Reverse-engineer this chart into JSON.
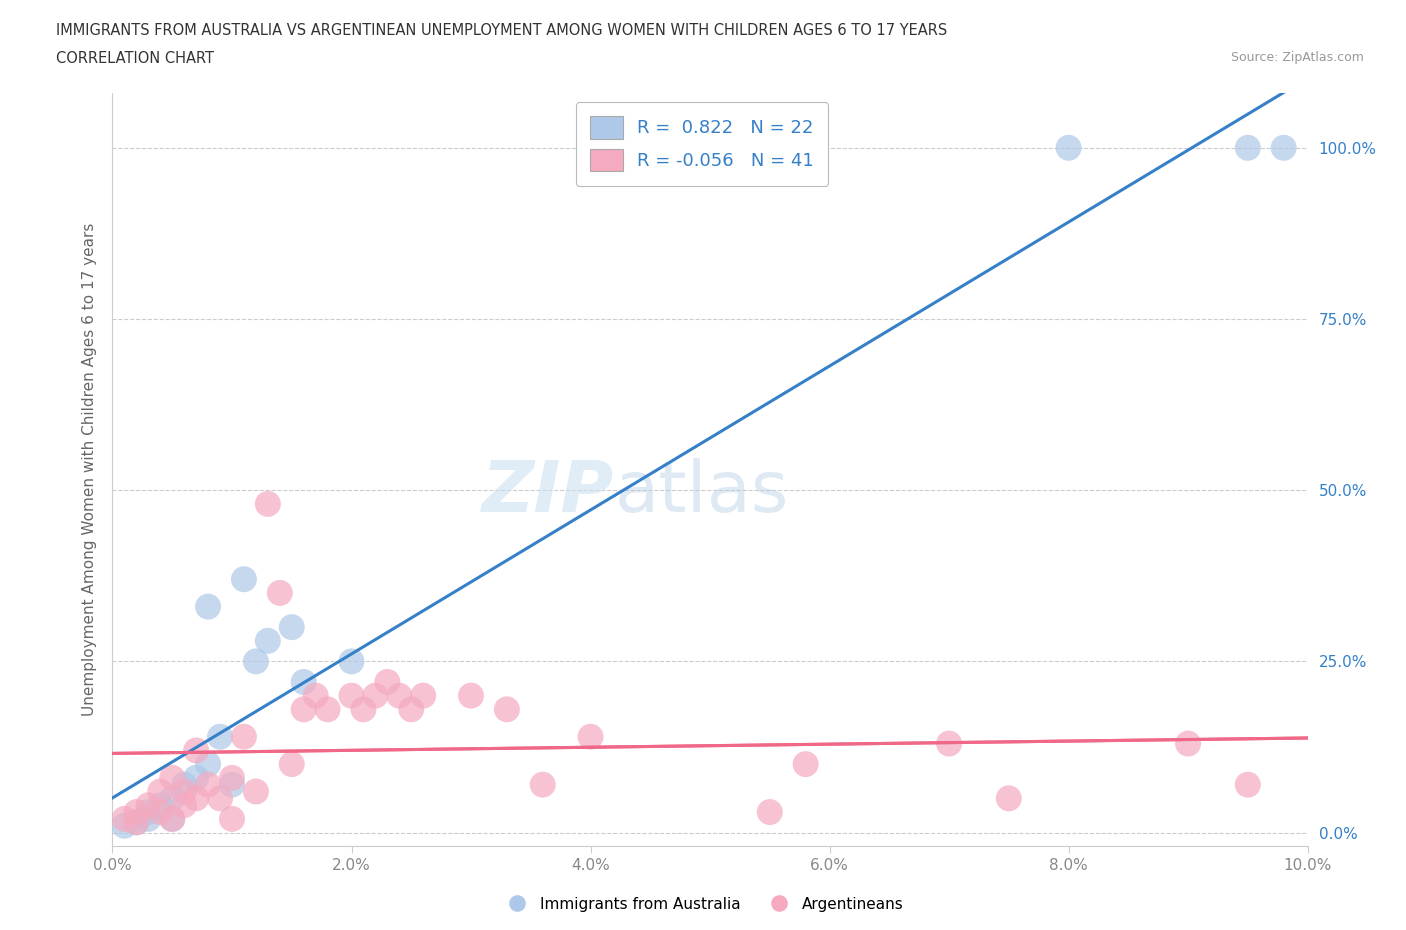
{
  "title_line1": "IMMIGRANTS FROM AUSTRALIA VS ARGENTINEAN UNEMPLOYMENT AMONG WOMEN WITH CHILDREN AGES 6 TO 17 YEARS",
  "title_line2": "CORRELATION CHART",
  "source": "Source: ZipAtlas.com",
  "ylabel": "Unemployment Among Women with Children Ages 6 to 17 years",
  "xlim": [
    0.0,
    10.0
  ],
  "ylim": [
    -2.0,
    108.0
  ],
  "xticklabels": [
    "0.0%",
    "2.0%",
    "4.0%",
    "6.0%",
    "8.0%",
    "10.0%"
  ],
  "xticks": [
    0.0,
    2.0,
    4.0,
    6.0,
    8.0,
    10.0
  ],
  "yticklabels_left": [],
  "yticks": [
    0.0,
    25.0,
    50.0,
    75.0,
    100.0
  ],
  "yticklabels_right": [
    "0.0%",
    "25.0%",
    "50.0%",
    "75.0%",
    "100.0%"
  ],
  "blue_R": 0.822,
  "blue_N": 22,
  "pink_R": -0.056,
  "pink_N": 41,
  "blue_color": "#adc8e8",
  "pink_color": "#f5aabf",
  "blue_line_color": "#3580c8",
  "pink_line_color": "#f06888",
  "watermark_zip": "ZIP",
  "watermark_atlas": "atlas",
  "background_color": "#ffffff",
  "blue_scatter_x": [
    0.1,
    0.2,
    0.3,
    0.3,
    0.4,
    0.5,
    0.5,
    0.6,
    0.7,
    0.8,
    0.8,
    0.9,
    1.0,
    1.1,
    1.2,
    1.3,
    1.5,
    1.6,
    2.0,
    8.0,
    9.5,
    9.8
  ],
  "blue_scatter_y": [
    1.0,
    1.5,
    2.0,
    3.0,
    4.0,
    5.0,
    2.0,
    7.0,
    8.0,
    10.0,
    33.0,
    14.0,
    7.0,
    37.0,
    25.0,
    28.0,
    30.0,
    22.0,
    25.0,
    100.0,
    100.0,
    100.0
  ],
  "pink_scatter_x": [
    0.1,
    0.2,
    0.2,
    0.3,
    0.4,
    0.4,
    0.5,
    0.5,
    0.6,
    0.6,
    0.7,
    0.7,
    0.8,
    0.9,
    1.0,
    1.0,
    1.1,
    1.2,
    1.3,
    1.4,
    1.5,
    1.6,
    1.7,
    1.8,
    2.0,
    2.1,
    2.2,
    2.3,
    2.4,
    2.5,
    2.6,
    3.0,
    3.3,
    3.6,
    4.0,
    5.5,
    5.8,
    7.0,
    7.5,
    9.0,
    9.5
  ],
  "pink_scatter_y": [
    2.0,
    3.0,
    1.5,
    4.0,
    6.0,
    3.0,
    8.0,
    2.0,
    6.0,
    4.0,
    12.0,
    5.0,
    7.0,
    5.0,
    8.0,
    2.0,
    14.0,
    6.0,
    48.0,
    35.0,
    10.0,
    18.0,
    20.0,
    18.0,
    20.0,
    18.0,
    20.0,
    22.0,
    20.0,
    18.0,
    20.0,
    20.0,
    18.0,
    7.0,
    14.0,
    3.0,
    10.0,
    13.0,
    5.0,
    13.0,
    7.0
  ]
}
